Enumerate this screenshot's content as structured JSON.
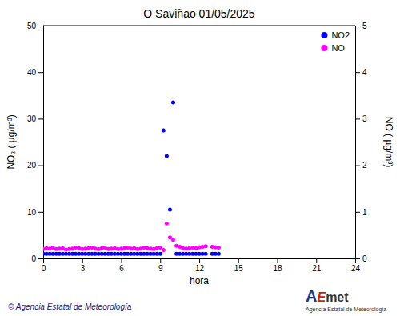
{
  "chart_data": {
    "type": "scatter",
    "title": "O Saviñao 01/05/2025",
    "xlabel": "hora",
    "ylabel": "NO₂ ( µg/m³)",
    "y2label": "NO ( µg/m³)",
    "x": [
      0.0,
      0.25,
      0.5,
      0.75,
      1.0,
      1.25,
      1.5,
      1.75,
      2.0,
      2.25,
      2.5,
      2.75,
      3.0,
      3.25,
      3.5,
      3.75,
      4.0,
      4.25,
      4.5,
      4.75,
      5.0,
      5.25,
      5.5,
      5.75,
      6.0,
      6.25,
      6.5,
      6.75,
      7.0,
      7.25,
      7.5,
      7.75,
      8.0,
      8.25,
      8.5,
      8.75,
      9.0,
      9.25,
      9.5,
      9.75,
      10.0,
      10.25,
      10.5,
      10.75,
      11.0,
      11.25,
      11.5,
      11.75,
      12.0,
      12.25,
      12.5,
      13.0,
      13.25,
      13.5
    ],
    "series": [
      {
        "name": "NO2",
        "color": "#0000ff",
        "values": [
          1.0,
          1.0,
          1.0,
          1.0,
          1.0,
          1.0,
          1.0,
          1.0,
          1.0,
          1.0,
          1.0,
          1.0,
          1.0,
          1.0,
          1.0,
          1.0,
          1.0,
          1.0,
          1.0,
          1.0,
          1.0,
          1.0,
          1.0,
          1.0,
          1.0,
          1.0,
          1.0,
          1.0,
          1.0,
          1.0,
          1.0,
          1.0,
          1.0,
          1.0,
          1.0,
          1.0,
          1.0,
          27.5,
          22.0,
          10.5,
          33.5,
          1.0,
          1.0,
          1.0,
          1.0,
          1.0,
          1.0,
          1.0,
          1.0,
          1.0,
          1.0,
          1.0,
          1.0,
          1.0
        ]
      },
      {
        "name": "NO",
        "color": "#ff00ff",
        "axis": "y2",
        "values": [
          0.2,
          0.22,
          0.21,
          0.23,
          0.2,
          0.21,
          0.22,
          0.19,
          0.2,
          0.21,
          0.23,
          0.22,
          0.2,
          0.21,
          0.22,
          0.23,
          0.21,
          0.2,
          0.22,
          0.23,
          0.2,
          0.21,
          0.22,
          0.2,
          0.21,
          0.22,
          0.23,
          0.21,
          0.22,
          0.2,
          0.21,
          0.23,
          0.22,
          0.21,
          0.2,
          0.22,
          0.23,
          0.18,
          0.75,
          0.45,
          0.4,
          0.27,
          0.25,
          0.22,
          0.21,
          0.22,
          0.23,
          0.22,
          0.24,
          0.25,
          0.26,
          0.25,
          0.24,
          0.23
        ]
      }
    ],
    "xlim": [
      0,
      24
    ],
    "xticks": [
      0,
      3,
      6,
      9,
      12,
      15,
      18,
      21,
      24
    ],
    "ylim": [
      0,
      50
    ],
    "yticks": [
      0,
      10,
      20,
      30,
      40,
      50
    ],
    "y2lim": [
      0,
      5
    ],
    "y2ticks": [
      0,
      1,
      2,
      3,
      4,
      5
    ],
    "grid": false,
    "legend": "upper right",
    "annotations": [
      "© Agencia Estatal de Meteorología",
      "A",
      "E",
      "met",
      "Agencia Estatal de Meteorología"
    ]
  }
}
